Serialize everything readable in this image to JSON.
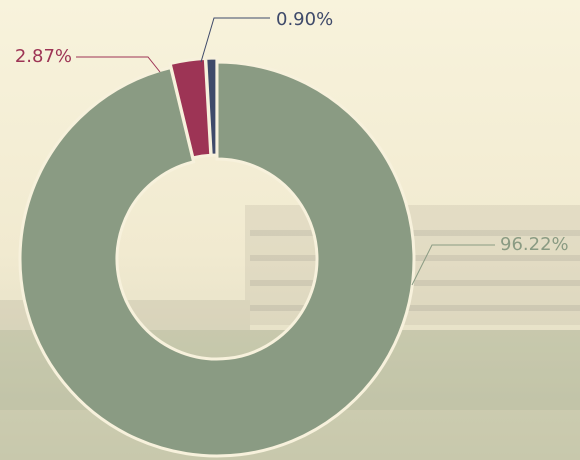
{
  "chart_data": {
    "type": "pie",
    "values": [
      96.22,
      2.87,
      0.9
    ],
    "value_labels": [
      "96.22%",
      "2.87%",
      "0.90%"
    ],
    "colors": [
      "#8a9b83",
      "#9d3455",
      "#3f4a6a"
    ]
  }
}
